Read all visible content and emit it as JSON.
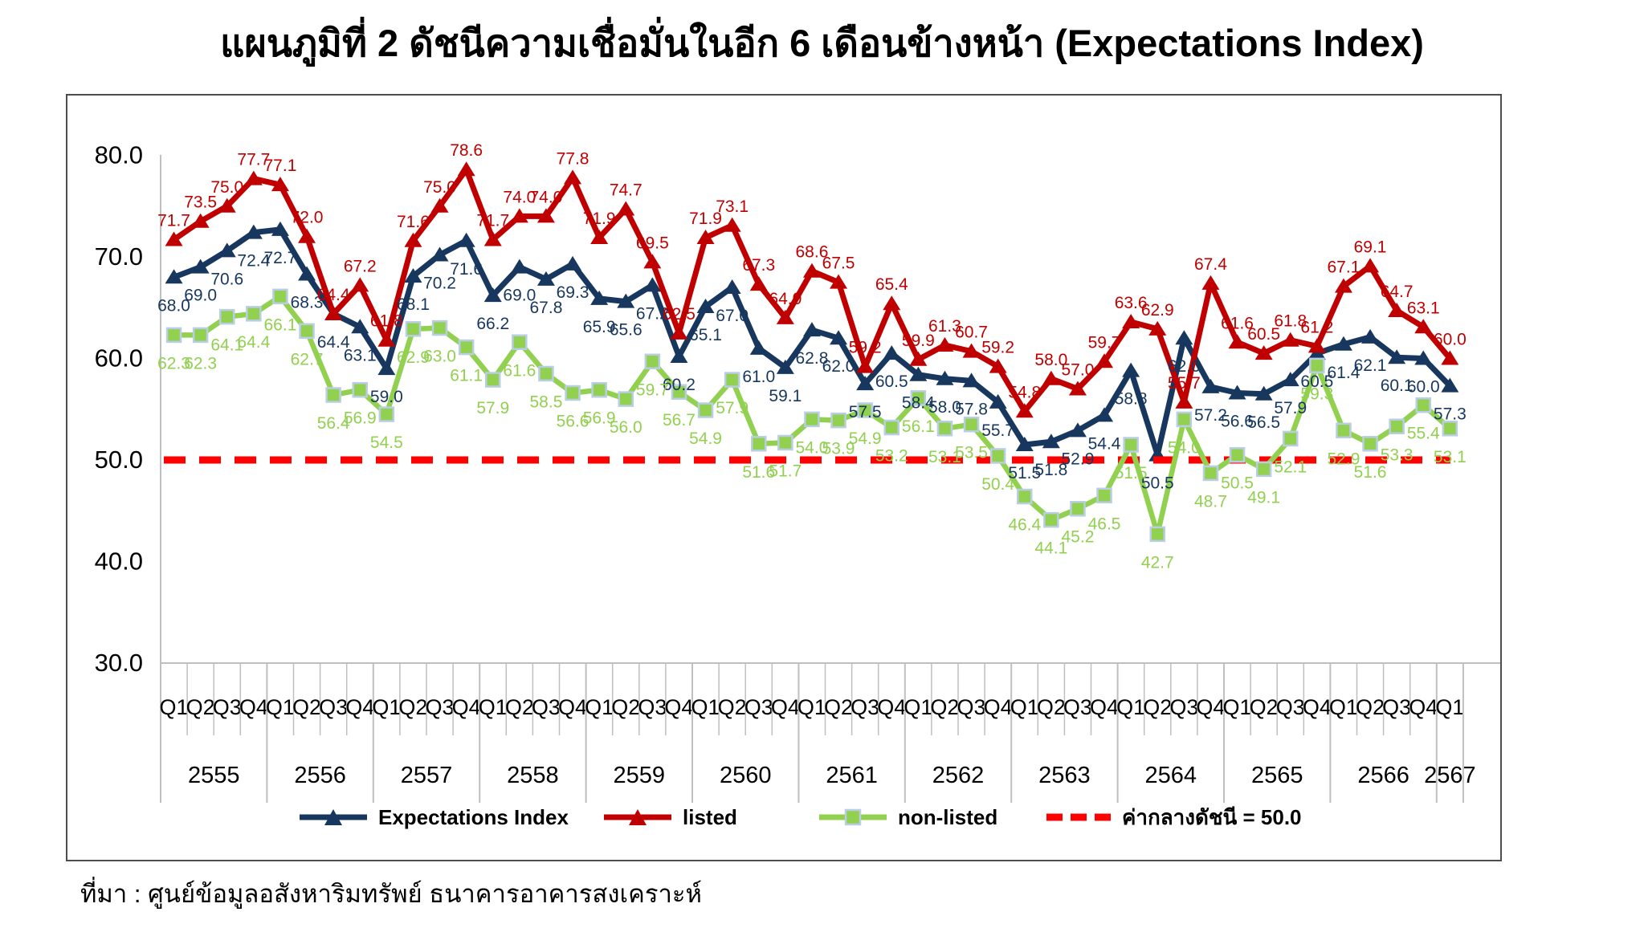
{
  "title": "แผนภูมิที่ 2 ดัชนีความเชื่อมั่นในอีก 6 เดือนข้างหน้า (Expectations Index)",
  "source": "ที่มา : ศูนย์ข้อมูลอสังหาริมทรัพย์ ธนาคารอาคารสงเคราะห์",
  "legend": {
    "expectations": "Expectations Index",
    "listed": "listed",
    "non_listed": "non-listed",
    "midline": "ค่ากลางดัชนี = 50.0"
  },
  "chart_data": {
    "type": "line",
    "title": "แผนภูมิที่ 2 ดัชนีความเชื่อมั่นในอีก 6 เดือนข้างหน้า (Expectations Index)",
    "years": [
      "2555",
      "2556",
      "2557",
      "2558",
      "2559",
      "2560",
      "2561",
      "2562",
      "2563",
      "2564",
      "2565",
      "2566",
      "2567"
    ],
    "quarters_per_year": [
      4,
      4,
      4,
      4,
      4,
      4,
      4,
      4,
      4,
      4,
      4,
      4,
      1
    ],
    "quarter_labels": [
      "Q1",
      "Q2",
      "Q3",
      "Q4"
    ],
    "ylim": [
      30,
      80
    ],
    "yticks": [
      "30.0",
      "40.0",
      "50.0",
      "60.0",
      "70.0",
      "80.0"
    ],
    "grid": "none",
    "legend_position": "bottom",
    "midline": {
      "value": 50.0,
      "label": "ค่ากลางดัชนี = 50.0",
      "color": "#FF0000"
    },
    "series": [
      {
        "name": "Expectations Index",
        "color": "#17375E",
        "marker": "triangle",
        "label_side": "below",
        "values": [
          68.0,
          69.0,
          70.6,
          72.4,
          72.7,
          68.3,
          64.4,
          63.1,
          59.0,
          68.1,
          70.2,
          71.6,
          66.2,
          69.0,
          67.8,
          69.3,
          65.9,
          65.6,
          67.2,
          60.2,
          65.1,
          67.0,
          61.0,
          59.1,
          62.8,
          62.0,
          57.5,
          60.5,
          58.4,
          58.0,
          57.8,
          55.7,
          51.5,
          51.8,
          52.9,
          54.4,
          58.8,
          50.5,
          62.0,
          57.2,
          56.6,
          56.5,
          57.9,
          60.5,
          61.4,
          62.1,
          60.1,
          60.0,
          57.3
        ]
      },
      {
        "name": "listed",
        "color": "#C00000",
        "marker": "triangle",
        "label_side": "above",
        "values": [
          71.7,
          73.5,
          75.0,
          77.7,
          77.1,
          72.0,
          64.4,
          67.2,
          61.8,
          71.6,
          75.0,
          78.6,
          71.7,
          74.0,
          74.0,
          77.8,
          71.9,
          74.7,
          69.5,
          62.5,
          71.9,
          73.1,
          67.3,
          64.0,
          68.6,
          67.5,
          59.2,
          65.4,
          59.9,
          61.3,
          60.7,
          59.2,
          54.8,
          58.0,
          57.0,
          59.7,
          63.6,
          62.9,
          55.7,
          67.4,
          61.6,
          60.5,
          61.8,
          61.2,
          67.1,
          69.1,
          64.7,
          63.1,
          60.0
        ]
      },
      {
        "name": "non-listed",
        "color": "#92D050",
        "marker": "square",
        "label_side": "below",
        "values": [
          62.3,
          62.3,
          64.1,
          64.4,
          66.1,
          62.7,
          56.4,
          56.9,
          54.5,
          62.9,
          63.0,
          61.1,
          57.9,
          61.6,
          58.5,
          56.6,
          56.9,
          56.0,
          59.7,
          56.7,
          54.9,
          57.9,
          51.6,
          51.7,
          54.0,
          53.9,
          54.9,
          53.2,
          56.1,
          53.1,
          53.5,
          50.4,
          46.4,
          44.1,
          45.2,
          46.5,
          51.5,
          42.7,
          54.0,
          48.7,
          50.5,
          49.1,
          52.1,
          59.3,
          52.9,
          51.6,
          53.3,
          55.4,
          53.1
        ]
      }
    ]
  }
}
